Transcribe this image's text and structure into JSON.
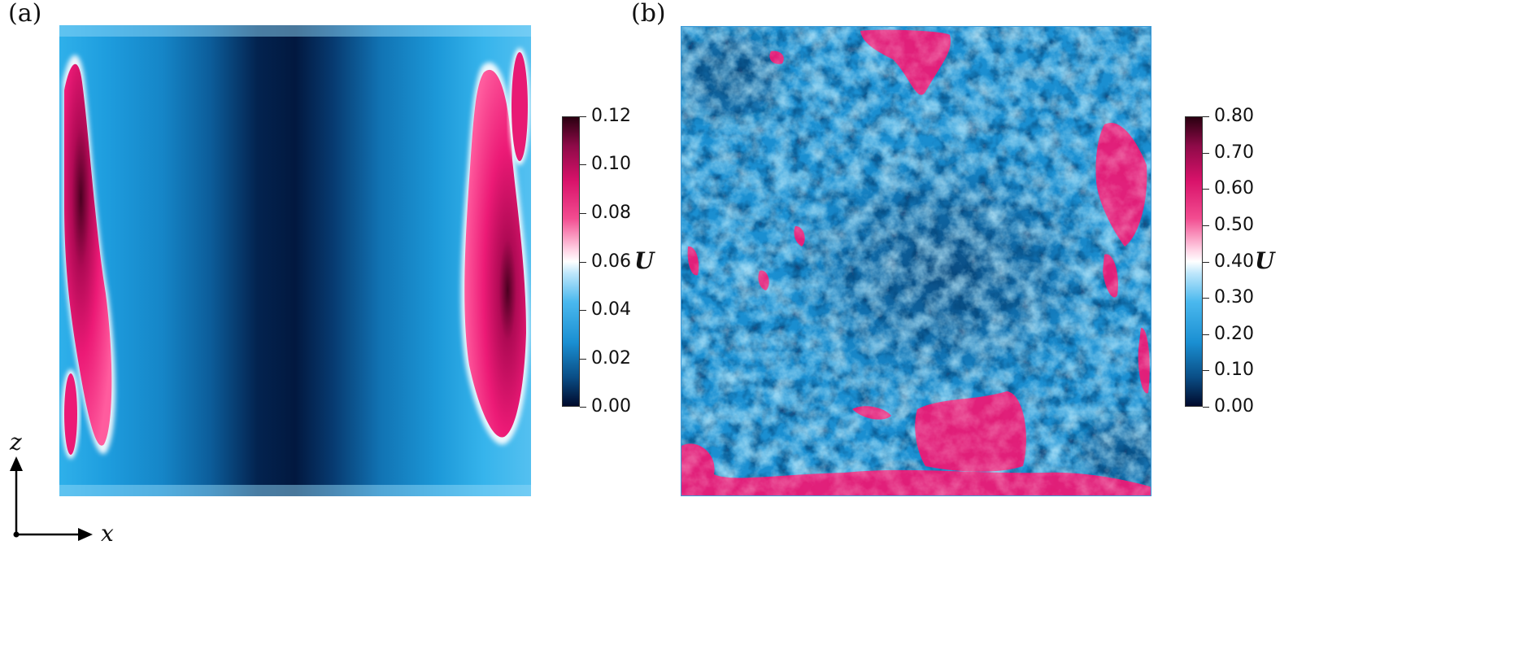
{
  "figure": {
    "panels": [
      {
        "label": "(a)"
      },
      {
        "label": "(b)"
      }
    ],
    "axes_indicator": {
      "horizontal": "x",
      "vertical": "z"
    }
  },
  "chart_data": [
    {
      "type": "heatmap",
      "panel": "(a)",
      "colorbar": {
        "title": "U",
        "min": 0.0,
        "max": 0.12,
        "ticks": [
          "0.12",
          "0.10",
          "0.08",
          "0.06",
          "0.04",
          "0.02",
          "0.00"
        ],
        "tick_values": [
          0.12,
          0.1,
          0.08,
          0.06,
          0.04,
          0.02,
          0.0
        ],
        "colormap": [
          "#000a2c",
          "#0d4f85",
          "#1aa0e0",
          "#5cc4f2",
          "#ffffff",
          "#ff7fb0",
          "#ee1d78",
          "#c0085a",
          "#4a0020"
        ]
      },
      "description_values": {
        "x_profile_U": [
          0.1,
          0.07,
          0.045,
          0.04,
          0.03,
          0.02,
          0.01,
          0.004,
          0.006,
          0.015,
          0.025,
          0.035,
          0.045,
          0.06,
          0.09,
          0.1
        ]
      }
    },
    {
      "type": "heatmap",
      "panel": "(b)",
      "colorbar": {
        "title": "U",
        "min": 0.0,
        "max": 0.8,
        "ticks": [
          "0.80",
          "0.70",
          "0.60",
          "0.50",
          "0.40",
          "0.30",
          "0.20",
          "0.10",
          "0.00"
        ],
        "tick_values": [
          0.8,
          0.7,
          0.6,
          0.5,
          0.4,
          0.3,
          0.2,
          0.1,
          0.0
        ],
        "colormap": [
          "#000a2c",
          "#0d4f85",
          "#1aa0e0",
          "#5cc4f2",
          "#ffffff",
          "#ff7fb0",
          "#ee1d78",
          "#c0085a",
          "#4a0020"
        ]
      }
    }
  ]
}
